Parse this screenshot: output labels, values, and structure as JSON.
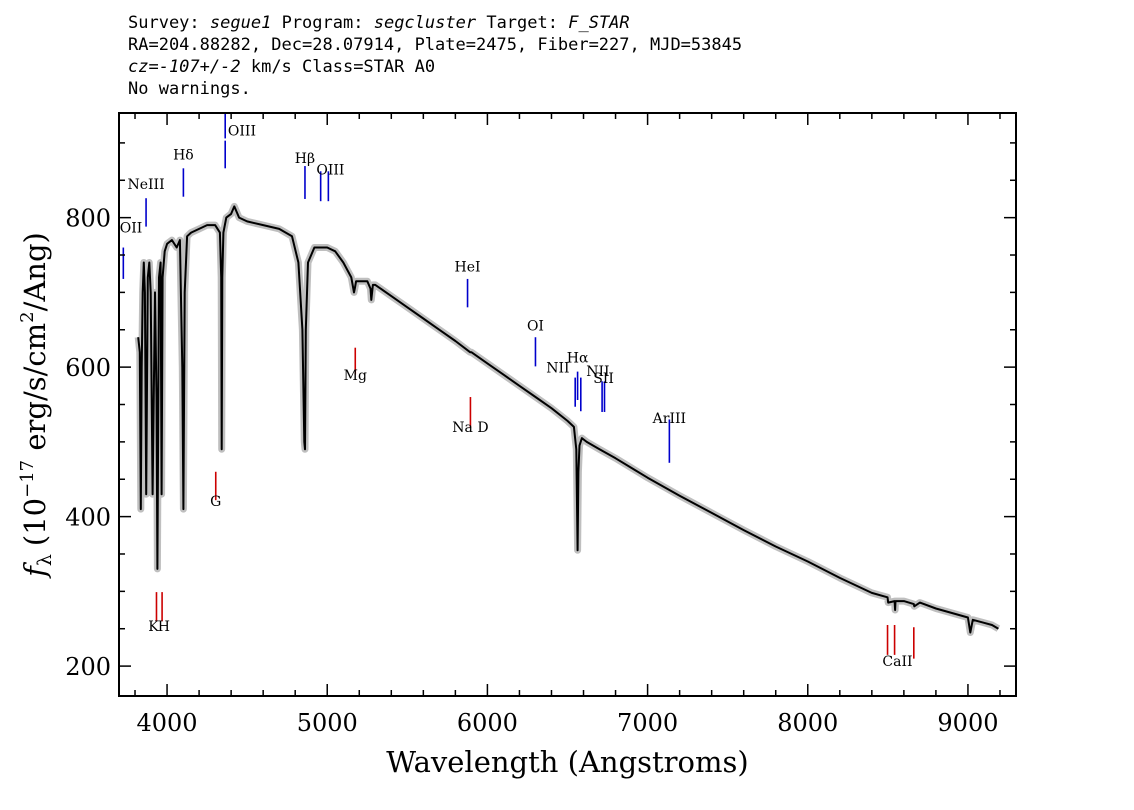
{
  "header": {
    "survey_label": "Survey:",
    "survey": "segue1",
    "program_label": "Program:",
    "program": "segcluster",
    "target_label": "Target:",
    "target": "F_STAR",
    "line2": "RA=204.88282, Dec=28.07914, Plate=2475, Fiber=227, MJD=53845",
    "cz": "cz=-107+/-2",
    "cz_rest": "km/s Class=STAR A0",
    "warnings": "No warnings."
  },
  "chart_data": {
    "type": "line",
    "title": "",
    "xlabel": "Wavelength (Angstroms)",
    "ylabel": "f_λ (10^-17 erg/s/cm^2/Ang)",
    "ylabel_parts": {
      "f": "f",
      "sub": "λ",
      "pre": "(10",
      "exp1": "−17",
      "mid": " erg/s/cm",
      "exp2": "2",
      "post": "/Ang)"
    },
    "xlim": [
      3700,
      9300
    ],
    "ylim": [
      160,
      940
    ],
    "xticks": [
      4000,
      5000,
      6000,
      7000,
      8000,
      9000
    ],
    "xtick_labels": [
      "4000",
      "5000",
      "6000",
      "7000",
      "8000",
      "9000"
    ],
    "yticks": [
      200,
      400,
      600,
      800
    ],
    "ytick_labels": [
      "200",
      "400",
      "600",
      "800"
    ],
    "grid": false,
    "colors": {
      "flux": "#000000",
      "error": "#bfbfbf",
      "emission": "#0000cc",
      "absorption": "#cc0000"
    },
    "series": [
      {
        "x": [
          3820,
          3830,
          3836,
          3842,
          3848,
          3855,
          3862,
          3870,
          3880,
          3889,
          3898,
          3910,
          3925,
          3934,
          3940,
          3950,
          3960,
          3966,
          3972,
          3985,
          4000,
          4030,
          4060,
          4080,
          4095,
          4102,
          4110,
          4125,
          4150,
          4200,
          4250,
          4300,
          4330,
          4338,
          4341,
          4345,
          4352,
          4370,
          4400,
          4420,
          4450,
          4500,
          4600,
          4700,
          4780,
          4820,
          4845,
          4857,
          4861,
          4866,
          4880,
          4920,
          5000,
          5050,
          5100,
          5150,
          5167,
          5172,
          5180,
          5200,
          5250,
          5270,
          5275,
          5285,
          5300,
          5400,
          5500,
          5600,
          5700,
          5800,
          5892,
          5900,
          6000,
          6100,
          6200,
          6300,
          6400,
          6500,
          6540,
          6555,
          6563,
          6568,
          6575,
          6590,
          6620,
          6700,
          6800,
          6900,
          7000,
          7200,
          7400,
          7600,
          7800,
          8000,
          8200,
          8400,
          8498,
          8502,
          8542,
          8545,
          8548,
          8600,
          8662,
          8665,
          8700,
          8800,
          9000,
          9015,
          9030,
          9100,
          9150,
          9190
        ],
        "y": [
          640,
          620,
          410,
          600,
          700,
          740,
          700,
          430,
          720,
          740,
          700,
          430,
          700,
          560,
          330,
          720,
          740,
          430,
          720,
          755,
          765,
          770,
          760,
          770,
          600,
          410,
          700,
          775,
          780,
          785,
          790,
          790,
          780,
          720,
          490,
          720,
          780,
          800,
          805,
          815,
          800,
          795,
          790,
          785,
          775,
          740,
          650,
          500,
          490,
          650,
          740,
          760,
          760,
          755,
          740,
          720,
          700,
          705,
          715,
          715,
          715,
          705,
          690,
          710,
          710,
          695,
          680,
          665,
          650,
          635,
          620,
          620,
          605,
          590,
          575,
          560,
          545,
          528,
          520,
          490,
          355,
          460,
          495,
          505,
          500,
          490,
          478,
          465,
          452,
          428,
          405,
          382,
          360,
          340,
          318,
          298,
          292,
          285,
          287,
          275,
          287,
          287,
          283,
          280,
          285,
          277,
          265,
          245,
          262,
          258,
          255,
          250
        ]
      }
    ],
    "line_labels": [
      {
        "name": "OII",
        "wave": 3727,
        "kind": "emission",
        "y1": 760,
        "y2": 718,
        "label_y": 780,
        "anchor": "start",
        "label_x": 3705
      },
      {
        "name": "NeIII",
        "wave": 3869,
        "kind": "emission",
        "y1": 826,
        "y2": 788,
        "label_y": 838,
        "anchor": "middle"
      },
      {
        "name": "Hδ",
        "wave": 4102,
        "kind": "emission",
        "y1": 866,
        "y2": 828,
        "label_y": 878,
        "anchor": "middle"
      },
      {
        "name": "OIII",
        "wave": 4363,
        "kind": "emission",
        "y1": 942,
        "y2": 906,
        "label_y": 910,
        "anchor": "start",
        "label_x": 4380
      },
      {
        "name": "",
        "wave": 4363,
        "kind": "emission",
        "y1": 903,
        "y2": 866,
        "label_y": 0,
        "anchor": "middle"
      },
      {
        "name": "Hβ",
        "wave": 4861,
        "kind": "emission",
        "y1": 869,
        "y2": 825,
        "label_y": 873,
        "anchor": "middle"
      },
      {
        "name": "OIII",
        "wave": 4959,
        "kind": "emission",
        "y1": 862,
        "y2": 822,
        "label_y": 0,
        "anchor": "middle"
      },
      {
        "name": "",
        "wave": 5007,
        "kind": "emission",
        "y1": 862,
        "y2": 822,
        "label_y": 0,
        "anchor": "middle"
      },
      {
        "name": "HeI",
        "wave": 5876,
        "kind": "emission",
        "y1": 718,
        "y2": 680,
        "label_y": 728,
        "anchor": "middle"
      },
      {
        "name": "OI",
        "wave": 6300,
        "kind": "emission",
        "y1": 640,
        "y2": 601,
        "label_y": 649,
        "anchor": "middle"
      },
      {
        "name": "NII",
        "wave": 6548,
        "kind": "emission",
        "y1": 586,
        "y2": 547,
        "label_y": 0,
        "anchor": "middle"
      },
      {
        "name": "Hα",
        "wave": 6563,
        "kind": "emission",
        "y1": 594,
        "y2": 556,
        "label_y": 606,
        "anchor": "middle"
      },
      {
        "name": "",
        "wave": 6583,
        "kind": "emission",
        "y1": 586,
        "y2": 541,
        "label_y": 0,
        "anchor": "middle"
      },
      {
        "name": "SII",
        "wave": 6716,
        "kind": "emission",
        "y1": 581,
        "y2": 540,
        "label_y": 0,
        "anchor": "middle"
      },
      {
        "name": "",
        "wave": 6731,
        "kind": "emission",
        "y1": 581,
        "y2": 540,
        "label_y": 0,
        "anchor": "middle"
      },
      {
        "name": "ArIII",
        "wave": 7136,
        "kind": "emission",
        "y1": 530,
        "y2": 472,
        "label_y": 525,
        "anchor": "middle"
      },
      {
        "name": "Mg",
        "wave": 5175,
        "kind": "absorption",
        "y1": 626,
        "y2": 590,
        "label_y": 583,
        "anchor": "middle"
      },
      {
        "name": "Na D",
        "wave": 5894,
        "kind": "absorption",
        "y1": 560,
        "y2": 519,
        "label_y": 513,
        "anchor": "middle"
      },
      {
        "name": "G",
        "wave": 4304,
        "kind": "absorption",
        "y1": 460,
        "y2": 422,
        "label_y": 414,
        "anchor": "middle"
      },
      {
        "name": "",
        "wave": 3934,
        "kind": "absorption",
        "y1": 299,
        "y2": 260,
        "label_y": 0,
        "anchor": "middle"
      },
      {
        "name": "",
        "wave": 3969,
        "kind": "absorption",
        "y1": 299,
        "y2": 260,
        "label_y": 0,
        "anchor": "middle"
      },
      {
        "name": "",
        "wave": 8498,
        "kind": "absorption",
        "y1": 255,
        "y2": 215,
        "label_y": 0,
        "anchor": "middle"
      },
      {
        "name": "",
        "wave": 8542,
        "kind": "absorption",
        "y1": 255,
        "y2": 215,
        "label_y": 0,
        "anchor": "middle"
      },
      {
        "name": "",
        "wave": 8662,
        "kind": "absorption",
        "y1": 252,
        "y2": 210,
        "label_y": 0,
        "anchor": "middle"
      }
    ],
    "text_labels": [
      {
        "text": "K",
        "wave": 3915,
        "y": 247
      },
      {
        "text": "H",
        "wave": 3980,
        "y": 247
      },
      {
        "text": "NII",
        "wave": 6440,
        "y": 593
      },
      {
        "text": "NII",
        "wave": 6690,
        "y": 588
      },
      {
        "text": "SII",
        "wave": 6725,
        "y": 579
      },
      {
        "text": "OIII",
        "wave": 5020,
        "y": 858
      },
      {
        "text": "CaII",
        "wave": 8560,
        "y": 200
      }
    ]
  }
}
